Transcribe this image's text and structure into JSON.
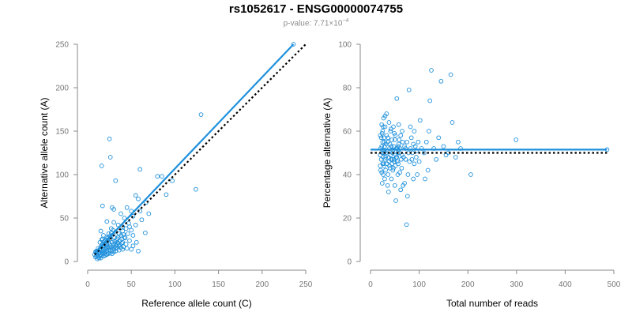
{
  "figure": {
    "title": "rs1052617 - ENSG00000074755",
    "subtitle_prefix": "p-value: 7.71×10",
    "subtitle_exponent": "−4",
    "point_color": "#1e90dc",
    "fit_color": "#1e90dc",
    "reference_color": "#000000"
  },
  "chart_data": [
    {
      "type": "scatter",
      "xlabel": "Reference allele count (C)",
      "ylabel": "Alternative allele count (A)",
      "xlim": [
        0,
        250
      ],
      "ylim": [
        0,
        250
      ],
      "xticks": [
        0,
        50,
        100,
        150,
        200,
        250
      ],
      "yticks": [
        0,
        50,
        100,
        150,
        200,
        250
      ],
      "grid": false,
      "fit_line": {
        "x": [
          8,
          236
        ],
        "y": [
          10,
          250
        ]
      },
      "reference_line": {
        "x": [
          8,
          250
        ],
        "y": [
          8,
          250
        ]
      },
      "points": [
        [
          236,
          250
        ],
        [
          130,
          169
        ],
        [
          25,
          141
        ],
        [
          26,
          120
        ],
        [
          16,
          110
        ],
        [
          60,
          106
        ],
        [
          32,
          93
        ],
        [
          80,
          98
        ],
        [
          85,
          98
        ],
        [
          97,
          93
        ],
        [
          124,
          83
        ],
        [
          90,
          77
        ],
        [
          55,
          76
        ],
        [
          58,
          72
        ],
        [
          67,
          68
        ],
        [
          17,
          64
        ],
        [
          28,
          62
        ],
        [
          30,
          60
        ],
        [
          45,
          62
        ],
        [
          50,
          58
        ],
        [
          60,
          58
        ],
        [
          70,
          55
        ],
        [
          38,
          55
        ],
        [
          42,
          50
        ],
        [
          52,
          52
        ],
        [
          62,
          48
        ],
        [
          66,
          33
        ],
        [
          58,
          12
        ],
        [
          22,
          46
        ],
        [
          27,
          38
        ],
        [
          30,
          45
        ],
        [
          35,
          42
        ],
        [
          40,
          40
        ],
        [
          47,
          44
        ],
        [
          48,
          40
        ],
        [
          36,
          32
        ],
        [
          40,
          35
        ],
        [
          44,
          38
        ],
        [
          50,
          36
        ],
        [
          55,
          42
        ],
        [
          18,
          30
        ],
        [
          22,
          28
        ],
        [
          24,
          32
        ],
        [
          26,
          26
        ],
        [
          28,
          30
        ],
        [
          30,
          28
        ],
        [
          32,
          34
        ],
        [
          34,
          26
        ],
        [
          38,
          30
        ],
        [
          42,
          28
        ],
        [
          46,
          32
        ],
        [
          52,
          30
        ],
        [
          14,
          22
        ],
        [
          16,
          25
        ],
        [
          18,
          18
        ],
        [
          20,
          24
        ],
        [
          22,
          20
        ],
        [
          24,
          22
        ],
        [
          26,
          18
        ],
        [
          28,
          22
        ],
        [
          30,
          20
        ],
        [
          32,
          16
        ],
        [
          34,
          22
        ],
        [
          36,
          18
        ],
        [
          40,
          22
        ],
        [
          44,
          20
        ],
        [
          48,
          24
        ],
        [
          52,
          18
        ],
        [
          56,
          22
        ],
        [
          10,
          12
        ],
        [
          12,
          15
        ],
        [
          14,
          10
        ],
        [
          15,
          17
        ],
        [
          16,
          13
        ],
        [
          17,
          20
        ],
        [
          18,
          12
        ],
        [
          19,
          16
        ],
        [
          20,
          14
        ],
        [
          21,
          19
        ],
        [
          22,
          12
        ],
        [
          23,
          17
        ],
        [
          24,
          14
        ],
        [
          25,
          20
        ],
        [
          26,
          13
        ],
        [
          27,
          16
        ],
        [
          28,
          12
        ],
        [
          29,
          18
        ],
        [
          30,
          14
        ],
        [
          31,
          17
        ],
        [
          32,
          12
        ],
        [
          34,
          15
        ],
        [
          36,
          13
        ],
        [
          38,
          16
        ],
        [
          40,
          14
        ],
        [
          45,
          15
        ],
        [
          50,
          14
        ],
        [
          8,
          8
        ],
        [
          9,
          11
        ],
        [
          10,
          9
        ],
        [
          11,
          12
        ],
        [
          12,
          7
        ],
        [
          13,
          10
        ],
        [
          14,
          13
        ],
        [
          15,
          8
        ],
        [
          16,
          11
        ],
        [
          17,
          9
        ],
        [
          18,
          14
        ],
        [
          19,
          10
        ],
        [
          20,
          9
        ],
        [
          21,
          11
        ],
        [
          22,
          8
        ],
        [
          23,
          10
        ],
        [
          24,
          9
        ],
        [
          26,
          10
        ],
        [
          28,
          9
        ],
        [
          30,
          11
        ],
        [
          9,
          5
        ],
        [
          10,
          6
        ],
        [
          12,
          5
        ],
        [
          14,
          6
        ],
        [
          16,
          7
        ],
        [
          18,
          6
        ],
        [
          20,
          7
        ],
        [
          11,
          3
        ],
        [
          13,
          4
        ],
        [
          15,
          4
        ],
        [
          19,
          20
        ],
        [
          21,
          25
        ],
        [
          23,
          27
        ],
        [
          25,
          29
        ],
        [
          27,
          33
        ],
        [
          29,
          36
        ],
        [
          33,
          24
        ],
        [
          35,
          28
        ],
        [
          37,
          24
        ],
        [
          39,
          26
        ],
        [
          41,
          31
        ],
        [
          43,
          27
        ],
        [
          15,
          35
        ],
        [
          17,
          26
        ],
        [
          19,
          23
        ],
        [
          21,
          16
        ],
        [
          23,
          24
        ],
        [
          25,
          16
        ],
        [
          31,
          23
        ],
        [
          33,
          19
        ],
        [
          35,
          21
        ],
        [
          37,
          19
        ],
        [
          39,
          21
        ],
        [
          41,
          17
        ]
      ]
    },
    {
      "type": "scatter",
      "xlabel": "Total number of reads",
      "ylabel": "Percentage alternative (A)",
      "xlim": [
        0,
        500
      ],
      "ylim": [
        0,
        100
      ],
      "xticks": [
        0,
        100,
        200,
        300,
        400,
        500
      ],
      "yticks": [
        0,
        20,
        40,
        60,
        80,
        100
      ],
      "grid": false,
      "fit_line": {
        "x": [
          0,
          486
        ],
        "y": [
          51.5,
          51.5
        ]
      },
      "reference_line": {
        "x": [
          0,
          486
        ],
        "y": [
          50,
          50
        ]
      },
      "points": [
        [
          486,
          51.5
        ],
        [
          299,
          56
        ],
        [
          206,
          40
        ],
        [
          185,
          52
        ],
        [
          180,
          55
        ],
        [
          175,
          48
        ],
        [
          168,
          64
        ],
        [
          165,
          86
        ],
        [
          160,
          50
        ],
        [
          150,
          53
        ],
        [
          145,
          83
        ],
        [
          135,
          47
        ],
        [
          125,
          88
        ],
        [
          122,
          74
        ],
        [
          120,
          60
        ],
        [
          118,
          42
        ],
        [
          112,
          38
        ],
        [
          110,
          50
        ],
        [
          105,
          52
        ],
        [
          102,
          65
        ],
        [
          98,
          55
        ],
        [
          96,
          40
        ],
        [
          94,
          48
        ],
        [
          92,
          53
        ],
        [
          90,
          45
        ],
        [
          88,
          38
        ],
        [
          86,
          50
        ],
        [
          84,
          57
        ],
        [
          82,
          62
        ],
        [
          80,
          46
        ],
        [
          79,
          79
        ],
        [
          77,
          40
        ],
        [
          76,
          30
        ],
        [
          74,
          17
        ],
        [
          72,
          52
        ],
        [
          70,
          36
        ],
        [
          68,
          48
        ],
        [
          66,
          55
        ],
        [
          65,
          60
        ],
        [
          64,
          43
        ],
        [
          62,
          33
        ],
        [
          60,
          50
        ],
        [
          59,
          56
        ],
        [
          58,
          63
        ],
        [
          57,
          45
        ],
        [
          56,
          40
        ],
        [
          55,
          52
        ],
        [
          54,
          75
        ],
        [
          53,
          48
        ],
        [
          52,
          28
        ],
        [
          51,
          58
        ],
        [
          50,
          35
        ],
        [
          49,
          46
        ],
        [
          48,
          53
        ],
        [
          47,
          62
        ],
        [
          46,
          42
        ],
        [
          45,
          50
        ],
        [
          44,
          56
        ],
        [
          43,
          38
        ],
        [
          42,
          47
        ],
        [
          41,
          60
        ],
        [
          40,
          43
        ],
        [
          39,
          52
        ],
        [
          38,
          64
        ],
        [
          37,
          48
        ],
        [
          36,
          40
        ],
        [
          35,
          55
        ],
        [
          34,
          45
        ],
        [
          33,
          58
        ],
        [
          32,
          50
        ],
        [
          31,
          42
        ],
        [
          30,
          62
        ],
        [
          30,
          47
        ],
        [
          29,
          53
        ],
        [
          29,
          38
        ],
        [
          28,
          57
        ],
        [
          28,
          44
        ],
        [
          27,
          51
        ],
        [
          27,
          66
        ],
        [
          26,
          48
        ],
        [
          26,
          40
        ],
        [
          25,
          55
        ],
        [
          25,
          45
        ],
        [
          25,
          60
        ],
        [
          24,
          50
        ],
        [
          24,
          36
        ],
        [
          23,
          53
        ],
        [
          23,
          63
        ],
        [
          22,
          47
        ],
        [
          22,
          57
        ],
        [
          21,
          42
        ],
        [
          21,
          52
        ],
        [
          20,
          49
        ],
        [
          20,
          58
        ],
        [
          20,
          44
        ],
        [
          30,
          67
        ],
        [
          33,
          68
        ],
        [
          35,
          35
        ],
        [
          37,
          32
        ],
        [
          40,
          54
        ],
        [
          42,
          61
        ],
        [
          45,
          47
        ],
        [
          47,
          43
        ],
        [
          50,
          56
        ],
        [
          52,
          49
        ],
        [
          55,
          46
        ],
        [
          57,
          53
        ],
        [
          60,
          41
        ],
        [
          62,
          58
        ],
        [
          65,
          49
        ],
        [
          67,
          35
        ],
        [
          70,
          53
        ],
        [
          72,
          47
        ],
        [
          75,
          55
        ],
        [
          78,
          50
        ],
        [
          82,
          52
        ],
        [
          85,
          47
        ],
        [
          88,
          54
        ],
        [
          90,
          60
        ],
        [
          95,
          51
        ],
        [
          100,
          46
        ],
        [
          115,
          55
        ],
        [
          130,
          52
        ],
        [
          140,
          57
        ],
        [
          155,
          49
        ],
        [
          23,
          41
        ],
        [
          24,
          59
        ],
        [
          26,
          62
        ],
        [
          27,
          45
        ],
        [
          28,
          50
        ],
        [
          29,
          55
        ],
        [
          31,
          48
        ],
        [
          32,
          54
        ],
        [
          34,
          51
        ],
        [
          36,
          57
        ],
        [
          38,
          46
        ],
        [
          39,
          44
        ],
        [
          41,
          49
        ],
        [
          43,
          53
        ],
        [
          44,
          45
        ],
        [
          46,
          51
        ],
        [
          48,
          47
        ],
        [
          49,
          59
        ],
        [
          51,
          44
        ],
        [
          53,
          52
        ],
        [
          54,
          48
        ],
        [
          56,
          50
        ],
        [
          58,
          54
        ],
        [
          61,
          52
        ],
        [
          63,
          47
        ]
      ]
    }
  ]
}
